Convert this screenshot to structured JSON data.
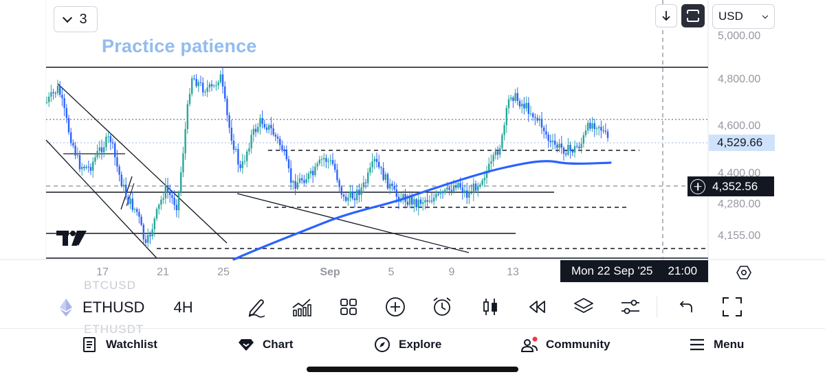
{
  "layout_button": {
    "count": "3"
  },
  "annotation": "Practice patience",
  "currency": {
    "selected": "USD"
  },
  "price_axis": [
    "5,000.00",
    "4,800.00",
    "4,600.00",
    "4,400.00",
    "4,280.00",
    "4,155.00"
  ],
  "current_price": "4,529.66",
  "crosshair_price": "4,352.56",
  "time_axis": [
    {
      "label": "17",
      "bold": false
    },
    {
      "label": "21",
      "bold": false
    },
    {
      "label": "25",
      "bold": false
    },
    {
      "label": "Sep",
      "bold": true
    },
    {
      "label": "5",
      "bold": false
    },
    {
      "label": "9",
      "bold": false
    },
    {
      "label": "13",
      "bold": false
    }
  ],
  "crosshair_time": {
    "date": "Mon 22 Sep '25",
    "time": "21:00"
  },
  "symbol": {
    "ghost_above": "BTCUSD",
    "name": "ETHUSD",
    "ghost_below": "ETHUSDT",
    "timeframe": "4H"
  },
  "toolbar_icons": [
    "drawing-icon",
    "indicators-icon",
    "templates-icon",
    "add-icon",
    "alert-icon",
    "candles-icon",
    "replay-icon",
    "layers-icon",
    "settings-sliders-icon",
    "undo-icon",
    "fullscreen-icon"
  ],
  "nav": {
    "watchlist": "Watchlist",
    "chart": "Chart",
    "explore": "Explore",
    "community": "Community",
    "menu": "Menu"
  },
  "colors": {
    "up": "#26a69a",
    "down": "#2962ff",
    "ma": "#2962ff",
    "annotation": "#92bcef",
    "current_price_bg": "#cfe2fb"
  }
}
